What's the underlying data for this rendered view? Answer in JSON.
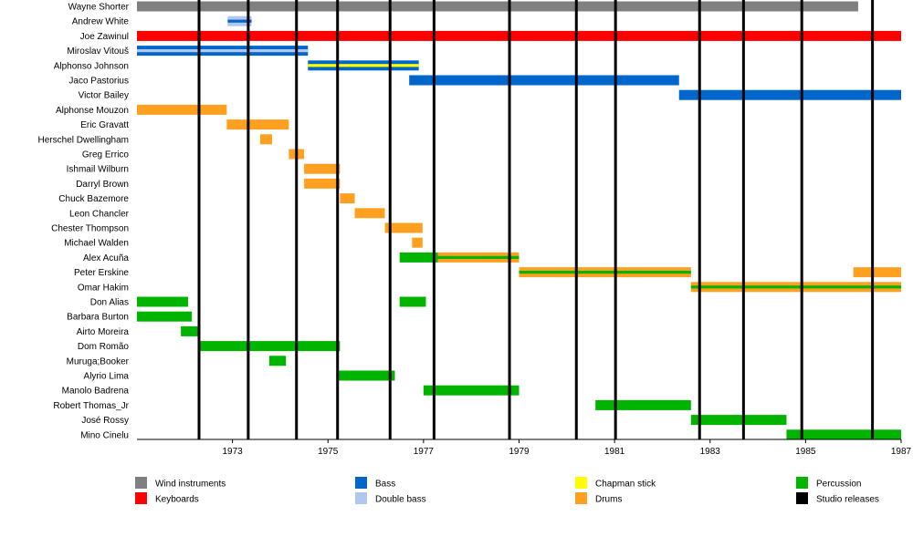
{
  "chart_data": {
    "type": "timeline",
    "title": "",
    "xlabel": "",
    "ylabel": "",
    "xlim": [
      1971.0,
      1987.0
    ],
    "x_ticks": [
      "1973",
      "1975",
      "1977",
      "1979",
      "1981",
      "1983",
      "1985",
      "1987"
    ],
    "x_tick_values": [
      1973,
      1975,
      1977,
      1979,
      1981,
      1983,
      1985,
      1987
    ],
    "grid": false,
    "legend_position": "bottom",
    "colors": {
      "wind": "#808080",
      "keyboards": "#ff0000",
      "bass": "#0066cc",
      "double_bass": "#b0c8f0",
      "chapman": "#ffff00",
      "drums": "#ffa020",
      "percussion": "#00b400",
      "studio": "#000000"
    },
    "studio_releases": [
      1972.3,
      1973.33,
      1974.34,
      1975.2,
      1976.3,
      1977.22,
      1978.8,
      1980.2,
      1981.02,
      1982.78,
      1983.7,
      1984.92,
      1986.4
    ],
    "legend": [
      {
        "label": "Wind instruments",
        "color_key": "wind"
      },
      {
        "label": "Keyboards",
        "color_key": "keyboards"
      },
      {
        "label": "Bass",
        "color_key": "bass"
      },
      {
        "label": "Double bass",
        "color_key": "double_bass"
      },
      {
        "label": "Chapman stick",
        "color_key": "chapman"
      },
      {
        "label": "Drums",
        "color_key": "drums"
      },
      {
        "label": "Percussion",
        "color_key": "percussion"
      },
      {
        "label": "Studio releases",
        "color_key": "studio"
      }
    ],
    "members": [
      {
        "name": "Wayne Shorter",
        "periods": [
          {
            "start": 1971.0,
            "end": 1986.1,
            "main": "wind"
          }
        ]
      },
      {
        "name": "Andrew White",
        "periods": [
          {
            "start": 1972.9,
            "end": 1973.4,
            "main": "double_bass",
            "inner": "bass"
          }
        ]
      },
      {
        "name": "Joe Zawinul",
        "periods": [
          {
            "start": 1971.0,
            "end": 1987.0,
            "main": "keyboards"
          }
        ]
      },
      {
        "name": "Miroslav Vitouš",
        "periods": [
          {
            "start": 1971.0,
            "end": 1974.58,
            "main": "bass",
            "inner": "double_bass"
          }
        ]
      },
      {
        "name": "Alphonso Johnson",
        "periods": [
          {
            "start": 1974.58,
            "end": 1976.9,
            "main": "bass",
            "inner": "chapman"
          }
        ]
      },
      {
        "name": "Jaco Pastorius",
        "periods": [
          {
            "start": 1976.7,
            "end": 1982.35,
            "main": "bass"
          }
        ]
      },
      {
        "name": "Victor Bailey",
        "periods": [
          {
            "start": 1982.35,
            "end": 1987.0,
            "main": "bass"
          }
        ]
      },
      {
        "name": "Alphonse Mouzon",
        "periods": [
          {
            "start": 1971.0,
            "end": 1972.88,
            "main": "drums"
          }
        ]
      },
      {
        "name": "Eric Gravatt",
        "periods": [
          {
            "start": 1972.88,
            "end": 1974.18,
            "main": "drums"
          }
        ]
      },
      {
        "name": "Herschel Dwellingham",
        "periods": [
          {
            "start": 1973.58,
            "end": 1973.83,
            "main": "drums"
          }
        ]
      },
      {
        "name": "Greg Errico",
        "periods": [
          {
            "start": 1974.18,
            "end": 1974.5,
            "main": "drums"
          }
        ]
      },
      {
        "name": "Ishmail Wilburn",
        "periods": [
          {
            "start": 1974.5,
            "end": 1975.25,
            "main": "drums"
          }
        ]
      },
      {
        "name": "Darryl Brown",
        "periods": [
          {
            "start": 1974.5,
            "end": 1975.25,
            "main": "drums"
          }
        ]
      },
      {
        "name": "Chuck Bazemore",
        "periods": [
          {
            "start": 1975.25,
            "end": 1975.56,
            "main": "drums"
          }
        ]
      },
      {
        "name": "Leon Chancler",
        "periods": [
          {
            "start": 1975.56,
            "end": 1976.19,
            "main": "drums"
          }
        ]
      },
      {
        "name": "Chester Thompson",
        "periods": [
          {
            "start": 1976.19,
            "end": 1976.98,
            "main": "drums"
          }
        ]
      },
      {
        "name": "Michael Walden",
        "periods": [
          {
            "start": 1976.76,
            "end": 1976.98,
            "main": "drums"
          }
        ]
      },
      {
        "name": "Alex Acuña",
        "periods": [
          {
            "start": 1976.5,
            "end": 1977.3,
            "main": "percussion"
          },
          {
            "start": 1977.3,
            "end": 1979.0,
            "main": "drums",
            "inner": "percussion"
          }
        ]
      },
      {
        "name": "Peter Erskine",
        "periods": [
          {
            "start": 1979.0,
            "end": 1982.6,
            "main": "drums",
            "inner": "percussion"
          },
          {
            "start": 1986.0,
            "end": 1987.0,
            "main": "drums"
          }
        ]
      },
      {
        "name": "Omar Hakim",
        "periods": [
          {
            "start": 1982.6,
            "end": 1987.0,
            "main": "drums",
            "inner": "percussion"
          }
        ]
      },
      {
        "name": "Don Alias",
        "periods": [
          {
            "start": 1971.0,
            "end": 1972.07,
            "main": "percussion"
          },
          {
            "start": 1976.5,
            "end": 1977.05,
            "main": "percussion"
          }
        ]
      },
      {
        "name": "Barbara Burton",
        "periods": [
          {
            "start": 1971.0,
            "end": 1972.15,
            "main": "percussion"
          }
        ]
      },
      {
        "name": "Airto Moreira",
        "periods": [
          {
            "start": 1971.92,
            "end": 1972.3,
            "main": "percussion"
          }
        ]
      },
      {
        "name": "Dom Romão",
        "periods": [
          {
            "start": 1972.3,
            "end": 1975.25,
            "main": "percussion"
          }
        ]
      },
      {
        "name": "Muruga;Booker",
        "periods": [
          {
            "start": 1973.77,
            "end": 1974.12,
            "main": "percussion"
          }
        ]
      },
      {
        "name": "Alyrio Lima",
        "periods": [
          {
            "start": 1975.22,
            "end": 1976.4,
            "main": "percussion"
          }
        ]
      },
      {
        "name": "Manolo Badrena",
        "periods": [
          {
            "start": 1977.0,
            "end": 1979.0,
            "main": "percussion"
          }
        ]
      },
      {
        "name": "Robert Thomas_Jr",
        "periods": [
          {
            "start": 1980.6,
            "end": 1982.6,
            "main": "percussion"
          }
        ]
      },
      {
        "name": "José Rossy",
        "periods": [
          {
            "start": 1982.6,
            "end": 1984.6,
            "main": "percussion"
          }
        ]
      },
      {
        "name": "Mino Cinelu",
        "periods": [
          {
            "start": 1984.6,
            "end": 1987.0,
            "main": "percussion"
          }
        ]
      }
    ]
  }
}
